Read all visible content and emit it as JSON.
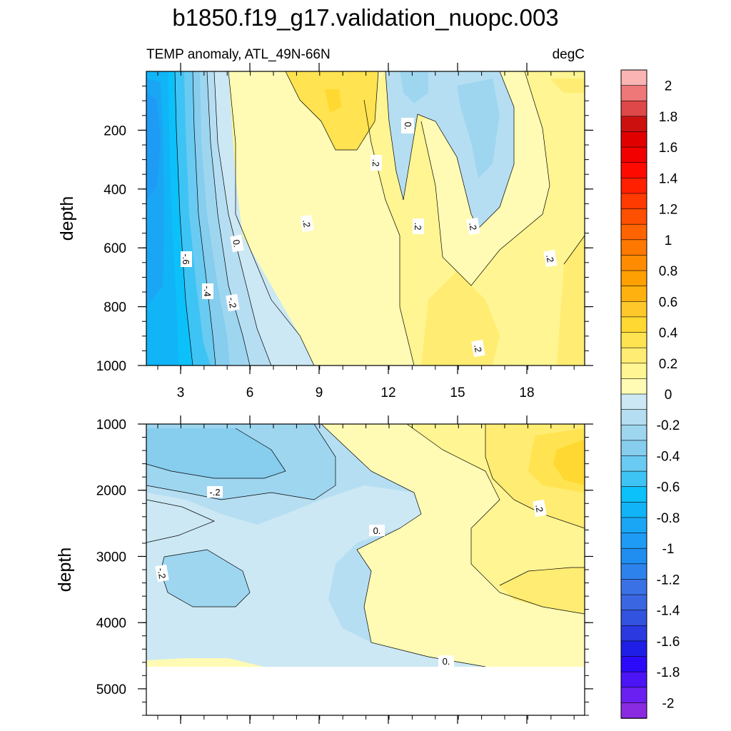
{
  "figure": {
    "title": "b1850.f19_g17.validation_nuopc.003",
    "subtitle_left": "TEMP anomaly, ATL_49N-66N",
    "subtitle_right": "degC"
  },
  "colors": {
    "c_m20": "#8a2be2",
    "c_m19": "#6a20f0",
    "c_m18": "#4a14f5",
    "c_m17": "#2a0af8",
    "c_m16": "#1e1ee6",
    "c_m15": "#2a3ae0",
    "c_m14": "#3252e0",
    "c_m13": "#3a66e2",
    "c_m12": "#3a72e6",
    "c_m11": "#2e82ec",
    "c_m10": "#1f8ef0",
    "c_m09": "#1e9bf5",
    "c_m08": "#1aa6f5",
    "c_m07": "#10b4f7",
    "c_m06": "#0cc0f9",
    "c_m05": "#3ec4f4",
    "c_m04": "#6acbf2",
    "c_m03": "#86cdee",
    "c_m02": "#9ed6f0",
    "c_m01": "#b6def2",
    "c_m00": "#cce8f4",
    "c_p00": "#fffbb4",
    "c_p01": "#fff592",
    "c_p02": "#ffec72",
    "c_p03": "#ffe350",
    "c_p04": "#ffd832",
    "c_p05": "#fec82a",
    "c_p06": "#feb10f",
    "c_p07": "#fea002",
    "c_p08": "#ff8c00",
    "c_p09": "#ff7800",
    "c_p10": "#ff6400",
    "c_p11": "#ff4f00",
    "c_p12": "#ff3a00",
    "c_p13": "#ff2000",
    "c_p14": "#ff0a00",
    "c_p15": "#f20000",
    "c_p16": "#e00000",
    "c_p17": "#cc1010",
    "c_p18": "#de4848",
    "c_p19": "#ee7878",
    "c_p20": "#fab4b4"
  },
  "chart_data": [
    {
      "type": "heatmap",
      "panel": "upper",
      "title": "TEMP anomaly, ATL_49N-66N",
      "units": "degC",
      "ylabel": "depth",
      "xlabel": "",
      "x_ticks": [
        "3",
        "6",
        "9",
        "12",
        "15",
        "18"
      ],
      "y_ticks": [
        "200",
        "400",
        "600",
        "800",
        "1000"
      ],
      "ylim": [
        1000,
        0
      ],
      "contour_labels": [
        "0.",
        "-.6",
        "-.4",
        "-.2",
        ".2",
        ".2",
        ".2",
        "0.",
        ".2",
        "0.",
        ".2",
        ".2"
      ],
      "regions": [
        {
          "level": "c_m10",
          "note": "strongest cold anomaly along left edge near 200 m"
        },
        {
          "level": "c_p03",
          "note": "warm core near 9-11 in upper 300 m"
        },
        {
          "level": "c_m02",
          "note": "cool tongue near 13-16 in upper 500 m"
        },
        {
          "level": "c_p02",
          "note": "warm region on right side at depth"
        }
      ]
    },
    {
      "type": "heatmap",
      "panel": "lower",
      "ylabel": "depth",
      "xlabel": "",
      "y_ticks": [
        "1000",
        "2000",
        "3000",
        "4000",
        "5000"
      ],
      "ylim": [
        5000,
        1000
      ],
      "contour_labels": [
        "-.2",
        "-.2",
        "0.",
        ".2",
        "0."
      ],
      "regions": [
        {
          "level": "c_m03",
          "note": "cool anomaly on left"
        },
        {
          "level": "c_p04",
          "note": "warm anomaly near x=18-21 at 1500 m"
        },
        {
          "level": "c_p02",
          "note": "warm tongue near x=19 at 3500 m"
        }
      ]
    }
  ],
  "colorbar": {
    "labels": [
      "2",
      "1.8",
      "1.6",
      "1.4",
      "1.2",
      "1",
      "0.8",
      "0.6",
      "0.4",
      "0.2",
      "0",
      "-0.2",
      "-0.4",
      "-0.6",
      "-0.8",
      "-1",
      "-1.2",
      "-1.4",
      "-1.6",
      "-1.8",
      "-2"
    ]
  }
}
